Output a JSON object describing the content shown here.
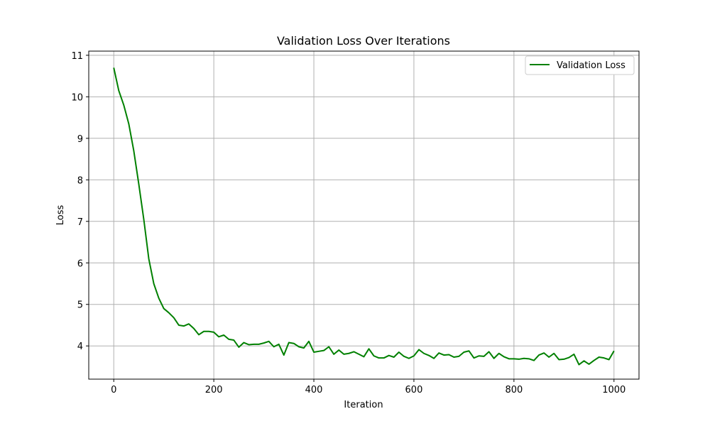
{
  "chart_data": {
    "type": "line",
    "title": "Validation Loss Over Iterations",
    "xlabel": "Iteration",
    "ylabel": "Loss",
    "xlim": [
      -50,
      1050
    ],
    "ylim": [
      3.2,
      11.1
    ],
    "xticks": [
      0,
      200,
      400,
      600,
      800,
      1000
    ],
    "yticks": [
      4,
      5,
      6,
      7,
      8,
      9,
      10,
      11
    ],
    "grid": true,
    "legend_position": "top-right",
    "series": [
      {
        "name": "Validation Loss",
        "color": "#008000",
        "x": [
          0,
          10,
          20,
          30,
          40,
          50,
          60,
          70,
          80,
          90,
          100,
          110,
          120,
          130,
          140,
          150,
          160,
          170,
          180,
          190,
          200,
          210,
          220,
          230,
          240,
          250,
          260,
          270,
          280,
          290,
          300,
          310,
          320,
          330,
          340,
          350,
          360,
          370,
          380,
          390,
          400,
          410,
          420,
          430,
          440,
          450,
          460,
          470,
          480,
          490,
          500,
          510,
          520,
          530,
          540,
          550,
          560,
          570,
          580,
          590,
          600,
          610,
          620,
          630,
          640,
          650,
          660,
          670,
          680,
          690,
          700,
          710,
          720,
          730,
          740,
          750,
          760,
          770,
          780,
          790,
          800,
          810,
          820,
          830,
          840,
          850,
          860,
          870,
          880,
          890,
          900,
          910,
          920,
          930,
          940,
          950,
          960,
          970,
          980,
          990,
          1000
        ],
        "y": [
          10.7,
          10.15,
          9.8,
          9.35,
          8.7,
          7.9,
          7.05,
          6.1,
          5.5,
          5.15,
          4.9,
          4.8,
          4.68,
          4.5,
          4.48,
          4.53,
          4.42,
          4.27,
          4.35,
          4.35,
          4.33,
          4.22,
          4.26,
          4.16,
          4.14,
          3.97,
          4.08,
          4.03,
          4.04,
          4.04,
          4.07,
          4.11,
          3.98,
          4.04,
          3.78,
          4.08,
          4.06,
          3.98,
          3.95,
          4.11,
          3.85,
          3.87,
          3.89,
          3.98,
          3.8,
          3.9,
          3.8,
          3.82,
          3.86,
          3.8,
          3.74,
          3.93,
          3.76,
          3.71,
          3.71,
          3.77,
          3.73,
          3.85,
          3.75,
          3.7,
          3.76,
          3.91,
          3.82,
          3.77,
          3.7,
          3.83,
          3.78,
          3.79,
          3.73,
          3.75,
          3.85,
          3.88,
          3.71,
          3.76,
          3.75,
          3.86,
          3.7,
          3.82,
          3.74,
          3.69,
          3.69,
          3.68,
          3.7,
          3.69,
          3.65,
          3.78,
          3.83,
          3.73,
          3.82,
          3.67,
          3.68,
          3.72,
          3.8,
          3.55,
          3.64,
          3.56,
          3.65,
          3.73,
          3.71,
          3.67,
          3.88
        ]
      }
    ]
  }
}
